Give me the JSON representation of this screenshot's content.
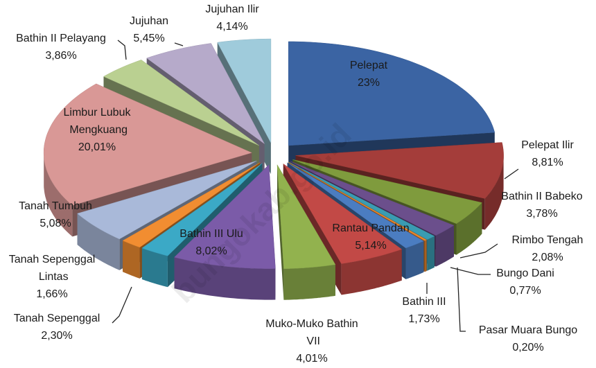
{
  "chart_data": {
    "type": "pie3d",
    "categories": [
      "Pelepat",
      "Pelepat Ilir",
      "Bathin II Babeko",
      "Rimbo Tengah",
      "Bungo Dani",
      "Pasar Muara Bungo",
      "Bathin III",
      "Rantau Pandan",
      "Muko-Muko Bathin VII",
      "Bathin III Ulu",
      "Tanah Sepenggal",
      "Tanah Sepenggal Lintas",
      "Tanah Tumbuh",
      "Limbur Lubuk Mengkuang",
      "Bathin II Pelayang",
      "Jujuhan",
      "Jujuhan Ilir"
    ],
    "values": [
      23,
      8.81,
      3.78,
      2.08,
      0.77,
      0.2,
      1.73,
      5.14,
      4.01,
      8.02,
      2.3,
      1.66,
      5.08,
      20.01,
      3.86,
      5.45,
      4.14
    ],
    "value_labels": [
      "23%",
      "8,81%",
      "3,78%",
      "2,08%",
      "0,77%",
      "0,20%",
      "1,73%",
      "5,14%",
      "4,01%",
      "8,02%",
      "2,30%",
      "1,66%",
      "5,08%",
      "20,01%",
      "3,86%",
      "5,45%",
      "4,14%"
    ],
    "colors": [
      "#3b64a3",
      "#a43d3a",
      "#7f9b3d",
      "#6b4f8c",
      "#3a9cb2",
      "#e8862e",
      "#4b7dc1",
      "#c24946",
      "#92b24e",
      "#7b5ba8",
      "#3ba9c6",
      "#f18d31",
      "#a9b9d9",
      "#d99896",
      "#bad091",
      "#b6aaca",
      "#9fcbdb"
    ],
    "watermark": "bungokab.go.id"
  }
}
